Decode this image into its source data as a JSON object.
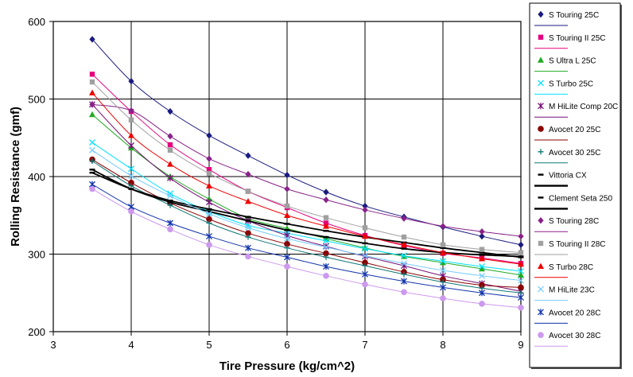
{
  "chart_data": {
    "type": "scatter",
    "title": "",
    "xlabel": "Tire Pressure (kg/cm^2)",
    "ylabel": "Rolling Resistance (gmf)",
    "xlim": [
      3,
      9
    ],
    "ylim": [
      200,
      600
    ],
    "xticks": [
      "3",
      "4",
      "5",
      "6",
      "7",
      "8",
      "9"
    ],
    "yticks": [
      "200",
      "300",
      "400",
      "500",
      "600"
    ],
    "grid": true,
    "legend_position": "right",
    "x": [
      3.5,
      4,
      4.5,
      5,
      5.5,
      6,
      6.5,
      7,
      7.5,
      8,
      8.5,
      9
    ],
    "series": [
      {
        "name": "S Touring 25C",
        "color": "#1a1a80",
        "marker": "diamond",
        "values": [
          577,
          523,
          484,
          453,
          427,
          402,
          380,
          362,
          348,
          335,
          323,
          312
        ]
      },
      {
        "name": "S Touring II 25C",
        "color": "#e6007e",
        "marker": "square",
        "values": [
          532,
          484,
          441,
          409,
          381,
          360,
          340,
          324,
          311,
          301,
          295,
          288
        ]
      },
      {
        "name": "S Ultra L 25C",
        "color": "#22aa22",
        "marker": "triangle",
        "values": [
          480,
          437,
          400,
          371,
          346,
          333,
          320,
          308,
          297,
          289,
          281,
          273
        ]
      },
      {
        "name": "S Turbo 25C",
        "color": "#00e0ff",
        "marker": "x",
        "values": [
          444,
          410,
          378,
          355,
          337,
          327,
          317,
          307,
          298,
          291,
          284,
          278
        ]
      },
      {
        "name": "M HiLite Comp 20C",
        "color": "#771177",
        "marker": "star",
        "values": [
          493,
          440,
          398,
          367,
          343,
          324,
          310,
          297,
          285,
          272,
          262,
          252
        ]
      },
      {
        "name": "Avocet 20 25C",
        "color": "#8b0000",
        "marker": "circle",
        "values": [
          422,
          392,
          366,
          345,
          327,
          313,
          301,
          289,
          277,
          267,
          260,
          257
        ]
      },
      {
        "name": "Avocet 30 25C",
        "color": "#117777",
        "marker": "plus",
        "values": [
          420,
          388,
          363,
          340,
          322,
          308,
          296,
          285,
          274,
          264,
          256,
          250
        ]
      },
      {
        "name": "Vittoria CX",
        "color": "#000000",
        "marker": "dash",
        "values": [
          409,
          384,
          367,
          355,
          343,
          331,
          322,
          314,
          307,
          302,
          299,
          297
        ]
      },
      {
        "name": "Clement Seta 250",
        "color": "#000000",
        "marker": "dash",
        "values": [
          405,
          384,
          369,
          358,
          348,
          339,
          330,
          322,
          315,
          308,
          302,
          296
        ]
      },
      {
        "name": "S Touring 28C",
        "color": "#882288",
        "marker": "diamond",
        "values": [
          493,
          485,
          452,
          423,
          403,
          384,
          370,
          357,
          346,
          336,
          329,
          323
        ]
      },
      {
        "name": "S Touring II 28C",
        "color": "#a0a0a0",
        "marker": "square",
        "values": [
          522,
          473,
          434,
          404,
          381,
          362,
          347,
          334,
          322,
          312,
          306,
          302
        ]
      },
      {
        "name": "S Turbo 28C",
        "color": "#ee0000",
        "marker": "triangle",
        "values": [
          508,
          453,
          416,
          388,
          368,
          350,
          336,
          323,
          312,
          302,
          294,
          287
        ]
      },
      {
        "name": "M HiLite 23C",
        "color": "#77ccff",
        "marker": "x",
        "values": [
          434,
          401,
          375,
          352,
          334,
          320,
          309,
          298,
          288,
          279,
          272,
          266
        ]
      },
      {
        "name": "Avocet 20 28C",
        "color": "#1133aa",
        "marker": "star",
        "values": [
          390,
          361,
          340,
          323,
          308,
          296,
          284,
          274,
          265,
          257,
          250,
          244
        ]
      },
      {
        "name": "Avocet 30 28C",
        "color": "#cc99ee",
        "marker": "circle",
        "values": [
          384,
          355,
          332,
          312,
          297,
          284,
          272,
          261,
          251,
          243,
          236,
          231
        ]
      }
    ]
  }
}
